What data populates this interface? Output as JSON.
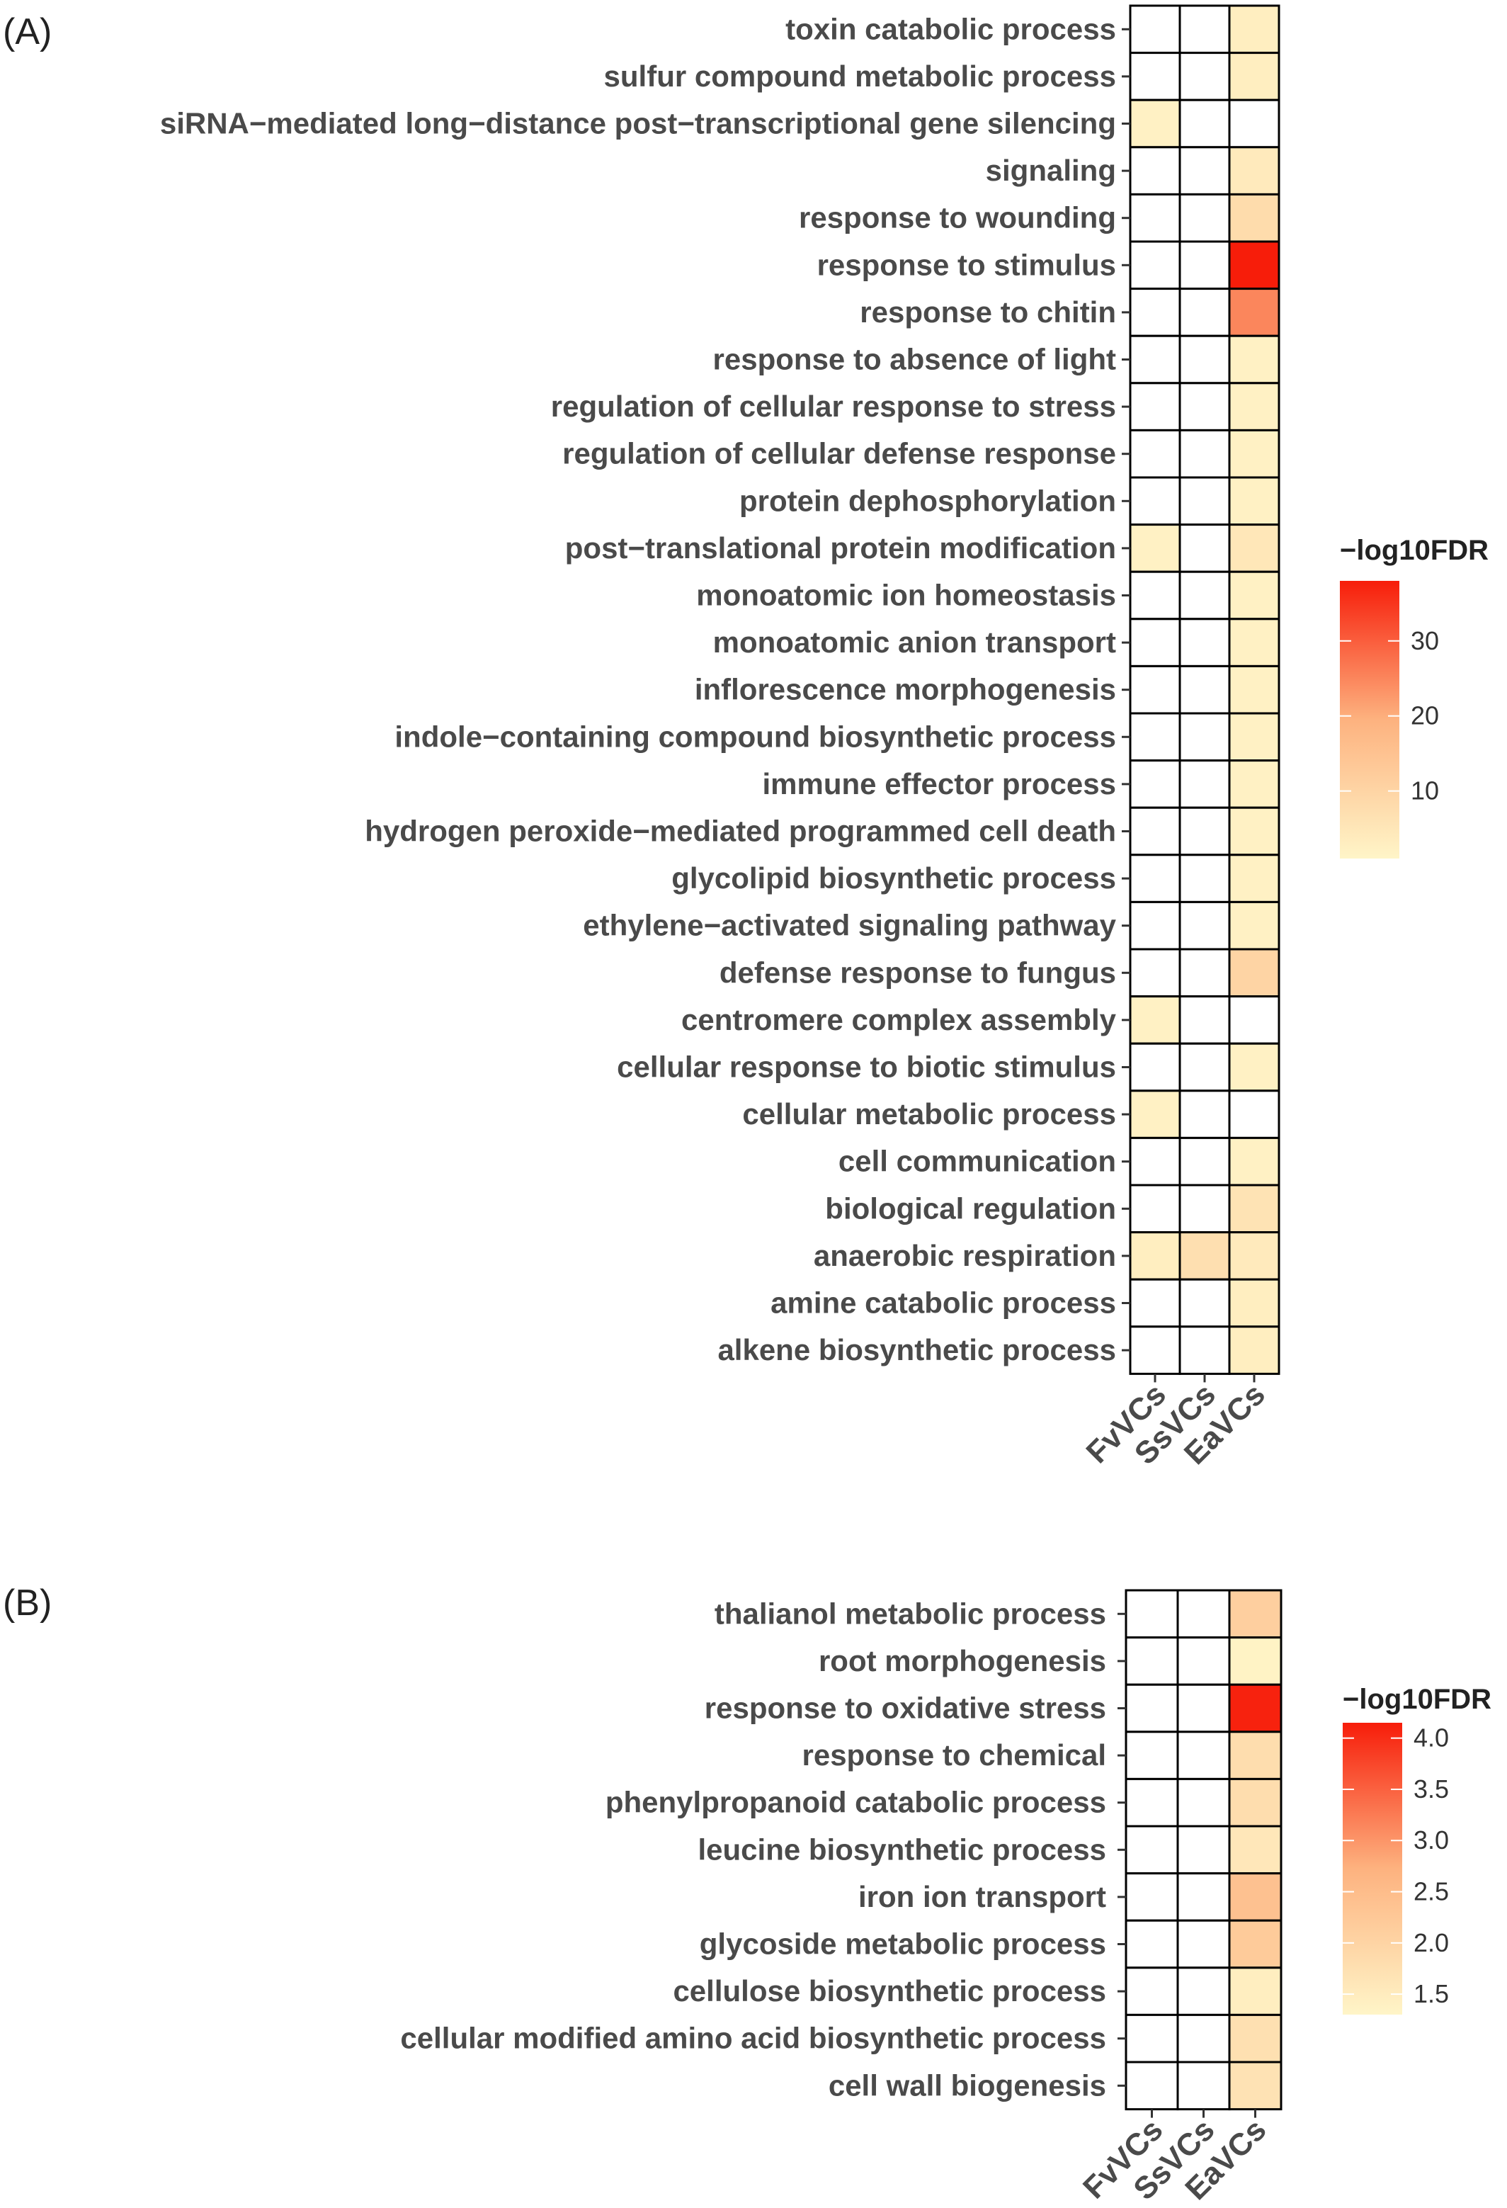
{
  "chart_data": [
    {
      "type": "heatmap",
      "panel_label": "(A)",
      "columns": [
        "FvVCs",
        "SsVCs",
        "EaVCs"
      ],
      "rows": [
        "toxin catabolic process",
        "sulfur compound metabolic process",
        "siRNA−mediated long−distance post−transcriptional gene silencing",
        "signaling",
        "response to wounding",
        "response to stimulus",
        "response to chitin",
        "response to absence of light",
        "regulation of cellular response to stress",
        "regulation of cellular defense response",
        "protein dephosphorylation",
        "post−translational protein modification",
        "monoatomic ion homeostasis",
        "monoatomic anion transport",
        "inflorescence morphogenesis",
        "indole−containing compound biosynthetic process",
        "immune effector process",
        "hydrogen peroxide−mediated programmed cell death",
        "glycolipid biosynthetic process",
        "ethylene−activated signaling pathway",
        "defense response to fungus",
        "centromere complex assembly",
        "cellular response to biotic stimulus",
        "cellular metabolic process",
        "cell communication",
        "biological regulation",
        "anaerobic respiration",
        "amine catabolic process",
        "alkene biosynthetic process"
      ],
      "values": [
        [
          null,
          null,
          3
        ],
        [
          null,
          null,
          3
        ],
        [
          2,
          null,
          null
        ],
        [
          null,
          null,
          4
        ],
        [
          null,
          null,
          8
        ],
        [
          null,
          null,
          38
        ],
        [
          null,
          null,
          25
        ],
        [
          null,
          null,
          2
        ],
        [
          null,
          null,
          2
        ],
        [
          null,
          null,
          2
        ],
        [
          null,
          null,
          2
        ],
        [
          2,
          null,
          5
        ],
        [
          null,
          null,
          2
        ],
        [
          null,
          null,
          2
        ],
        [
          null,
          null,
          2
        ],
        [
          null,
          null,
          2
        ],
        [
          null,
          null,
          2
        ],
        [
          null,
          null,
          2
        ],
        [
          null,
          null,
          2
        ],
        [
          null,
          null,
          2
        ],
        [
          null,
          null,
          10
        ],
        [
          2,
          null,
          null
        ],
        [
          null,
          null,
          2
        ],
        [
          2,
          null,
          null
        ],
        [
          null,
          null,
          2
        ],
        [
          null,
          null,
          6
        ],
        [
          3,
          7,
          4
        ],
        [
          null,
          null,
          3
        ],
        [
          null,
          null,
          3
        ]
      ],
      "legend": {
        "title": "−log10FDR",
        "min": 1,
        "max": 38,
        "ticks": [
          10,
          20,
          30
        ]
      },
      "colors": {
        "low": "#FFF5C8",
        "mid": "#FDB27F",
        "high": "#F71D0A",
        "empty": "#ffffff",
        "border": "#000000"
      }
    },
    {
      "type": "heatmap",
      "panel_label": "(B)",
      "columns": [
        "FvVCs",
        "SsVCs",
        "EaVCs"
      ],
      "rows": [
        "thalianol metabolic process",
        "root morphogenesis",
        "response to oxidative stress",
        "response to chemical",
        "phenylpropanoid catabolic process",
        "leucine biosynthetic process",
        "iron ion transport",
        "glycoside metabolic process",
        "cellulose biosynthetic process",
        "cellular modified amino acid biosynthetic process",
        "cell wall biogenesis"
      ],
      "values": [
        [
          null,
          null,
          2.1
        ],
        [
          null,
          null,
          1.35
        ],
        [
          null,
          null,
          4.1
        ],
        [
          null,
          null,
          1.8
        ],
        [
          null,
          null,
          1.8
        ],
        [
          null,
          null,
          1.6
        ],
        [
          null,
          null,
          2.4
        ],
        [
          null,
          null,
          2.2
        ],
        [
          null,
          null,
          1.45
        ],
        [
          null,
          null,
          1.75
        ],
        [
          null,
          null,
          1.7
        ]
      ],
      "legend": {
        "title": "−log10FDR",
        "min": 1.3,
        "max": 4.15,
        "ticks": [
          "1.5",
          "2.0",
          "2.5",
          "3.0",
          "3.5",
          "4.0"
        ]
      },
      "colors": {
        "low": "#FFF5C8",
        "mid": "#FDB27F",
        "high": "#F71D0A",
        "empty": "#ffffff",
        "border": "#000000"
      }
    }
  ]
}
